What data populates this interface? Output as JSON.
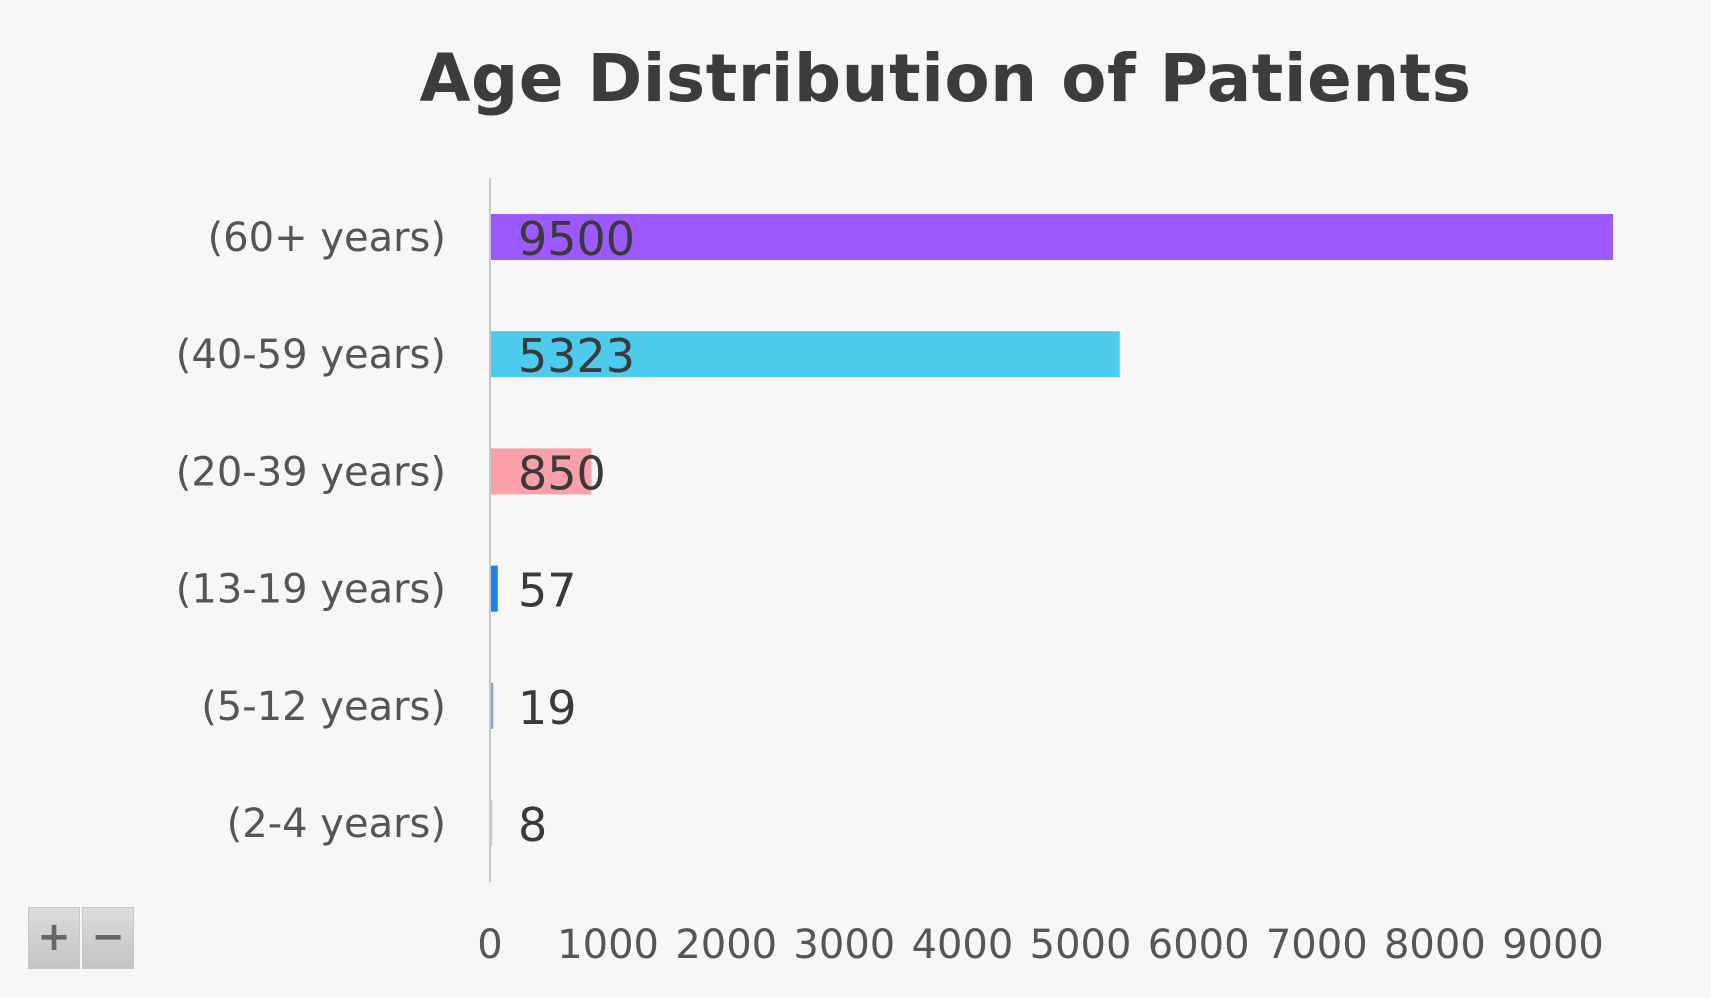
{
  "chart_data": {
    "type": "bar",
    "orientation": "horizontal",
    "title": "Age Distribution of Patients",
    "categories": [
      "(60+ years)",
      "(40-59 years)",
      "(20-39 years)",
      "(13-19 years)",
      "(5-12 years)",
      "(2-4 years)"
    ],
    "values": [
      9500,
      5323,
      850,
      57,
      19,
      8
    ],
    "colors": [
      "#9b59ff",
      "#4ccbec",
      "#f9a0a8",
      "#1c7ff0",
      "#7aa3d6",
      "#c9c9c9"
    ],
    "xlim": [
      0,
      9600
    ],
    "xticks": [
      0,
      1000,
      2000,
      3000,
      4000,
      5000,
      6000,
      7000,
      8000,
      9000
    ],
    "xlabel": "",
    "ylabel": "",
    "grid": false,
    "data_labels": true
  },
  "zoom": {
    "in_label": "+",
    "out_label": "−"
  }
}
